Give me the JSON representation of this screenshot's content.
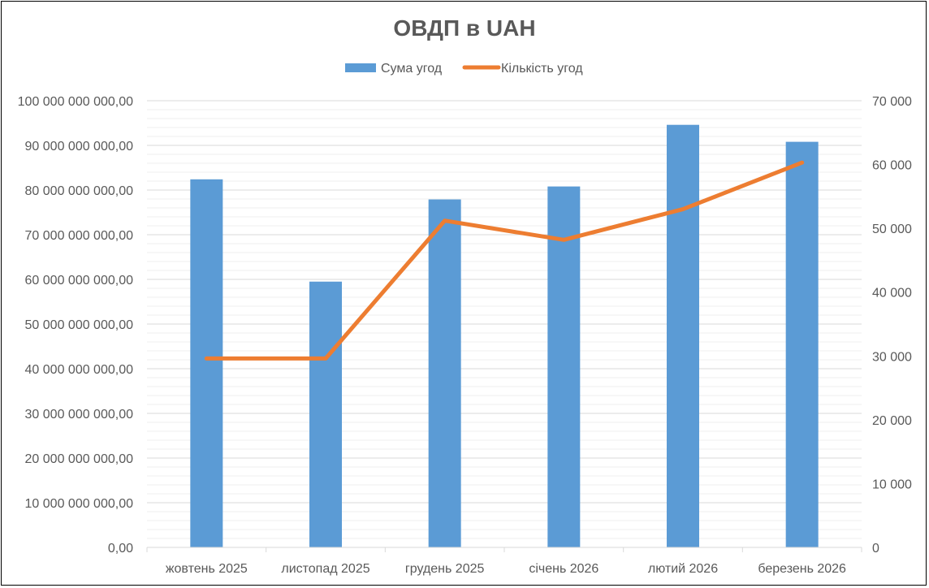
{
  "chart_data": {
    "type": "bar",
    "title": "ОВДП в UAH",
    "categories": [
      "жовтень 2025",
      "листопад 2025",
      "грудень 2025",
      "січень 2026",
      "лютий 2026",
      "березень 2026"
    ],
    "series": [
      {
        "name": "Сума угод",
        "type": "bar",
        "axis": "left",
        "color": "#5B9BD5",
        "values": [
          82400000000,
          59500000000,
          77900000000,
          80800000000,
          94600000000,
          90800000000
        ]
      },
      {
        "name": "Кількість угод",
        "type": "line",
        "axis": "right",
        "color": "#ED7D31",
        "values": [
          29600,
          29600,
          51200,
          48200,
          53000,
          60300
        ]
      }
    ],
    "y_left": {
      "min": 0,
      "max": 100000000000,
      "major_step": 10000000000,
      "tick_labels": [
        "0,00",
        "10 000 000 000,00",
        "20 000 000 000,00",
        "30 000 000 000,00",
        "40 000 000 000,00",
        "50 000 000 000,00",
        "60 000 000 000,00",
        "70 000 000 000,00",
        "80 000 000 000,00",
        "90 000 000 000,00",
        "100 000 000 000,00"
      ]
    },
    "y_right": {
      "min": 0,
      "max": 70000,
      "major_step": 10000,
      "tick_labels": [
        "0",
        "10 000",
        "20 000",
        "30 000",
        "40 000",
        "50 000",
        "60 000",
        "70 000"
      ]
    },
    "grid": true,
    "legend_position": "top"
  }
}
